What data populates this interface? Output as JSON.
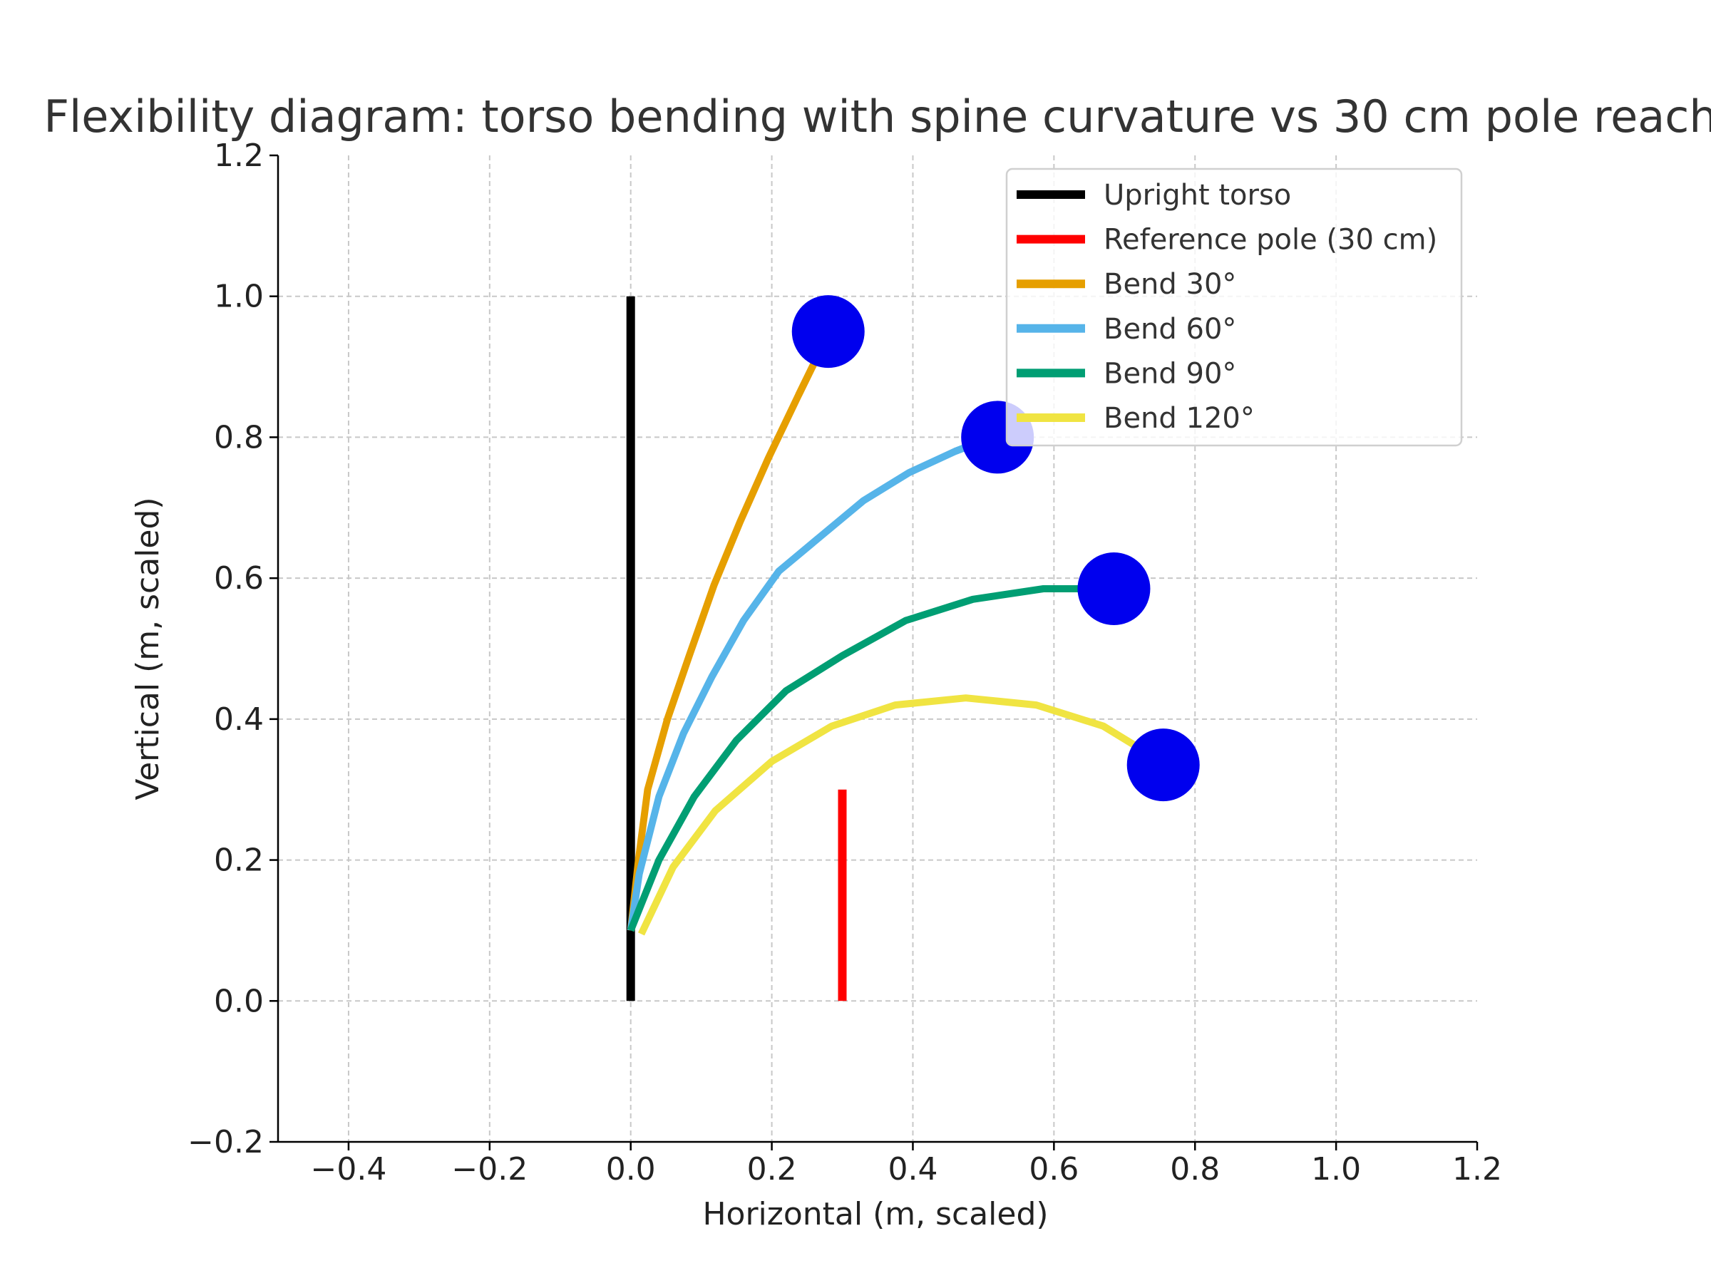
{
  "chart_data": {
    "type": "line",
    "title": "Flexibility diagram: torso bending with spine curvature vs 30 cm pole reach",
    "xlabel": "Horizontal (m, scaled)",
    "ylabel": "Vertical (m, scaled)",
    "xlim": [
      -0.5,
      1.2
    ],
    "ylim": [
      -0.2,
      1.2
    ],
    "xticks": [
      -0.4,
      -0.2,
      0.0,
      0.2,
      0.4,
      0.6,
      0.8,
      1.0,
      1.2
    ],
    "yticks": [
      -0.2,
      0.0,
      0.2,
      0.4,
      0.6,
      0.8,
      1.0,
      1.2
    ],
    "xtick_labels": [
      "−0.4",
      "−0.2",
      "0.0",
      "0.2",
      "0.4",
      "0.6",
      "0.8",
      "1.0",
      "1.2"
    ],
    "ytick_labels": [
      "−0.2",
      "0.0",
      "0.2",
      "0.4",
      "0.6",
      "0.8",
      "1.0",
      "1.2"
    ],
    "grid": true,
    "legend_position": "top-right",
    "series": [
      {
        "name": "Upright torso",
        "color": "#000000",
        "x": [
          0.0,
          0.0
        ],
        "y": [
          0.0,
          1.0
        ]
      },
      {
        "name": "Reference pole (30 cm)",
        "color": "#ff0000",
        "x": [
          0.3,
          0.3
        ],
        "y": [
          0.0,
          0.3
        ]
      },
      {
        "name": "Bend 30°",
        "color": "#e69f00",
        "x": [
          0.0,
          0.011,
          0.024,
          0.052,
          0.083,
          0.118,
          0.155,
          0.195,
          0.238,
          0.282
        ],
        "y": [
          0.1,
          0.2,
          0.3,
          0.4,
          0.49,
          0.59,
          0.68,
          0.77,
          0.86,
          0.95
        ]
      },
      {
        "name": "Bend 60°",
        "color": "#56b4e9",
        "x": [
          0.0,
          0.012,
          0.04,
          0.075,
          0.115,
          0.16,
          0.21,
          0.27,
          0.33,
          0.395,
          0.46,
          0.525
        ],
        "y": [
          0.1,
          0.18,
          0.29,
          0.38,
          0.46,
          0.54,
          0.61,
          0.66,
          0.71,
          0.75,
          0.78,
          0.805
        ]
      },
      {
        "name": "Bend 90°",
        "color": "#009e73",
        "x": [
          0.0,
          0.04,
          0.09,
          0.15,
          0.22,
          0.3,
          0.39,
          0.485,
          0.585,
          0.69
        ],
        "y": [
          0.1,
          0.2,
          0.29,
          0.37,
          0.44,
          0.49,
          0.54,
          0.57,
          0.585,
          0.585
        ]
      },
      {
        "name": "Bend 120°",
        "color": "#f0e442",
        "x": [
          0.015,
          0.06,
          0.12,
          0.2,
          0.285,
          0.375,
          0.475,
          0.575,
          0.67,
          0.76
        ],
        "y": [
          0.095,
          0.19,
          0.27,
          0.34,
          0.39,
          0.42,
          0.43,
          0.42,
          0.39,
          0.335
        ]
      }
    ],
    "markers": {
      "color": "#0000ee",
      "points": [
        {
          "x": 0.28,
          "y": 0.95
        },
        {
          "x": 0.52,
          "y": 0.8
        },
        {
          "x": 0.685,
          "y": 0.585
        },
        {
          "x": 0.755,
          "y": 0.335
        }
      ]
    }
  }
}
